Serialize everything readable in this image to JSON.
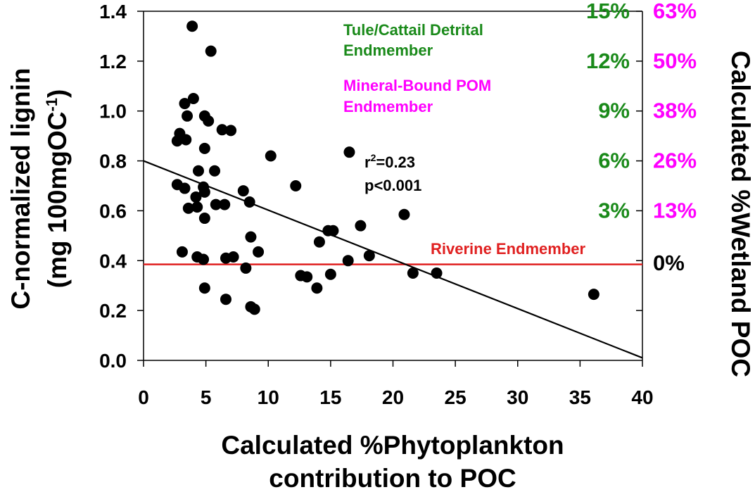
{
  "chart_data": {
    "type": "scatter",
    "xlabel_lines": [
      "Calculated %Phytoplankton",
      "contribution to POC"
    ],
    "ylabel_lines": [
      "C-normalized lignin",
      "(mg 100mgOC",
      "-1",
      ")"
    ],
    "y2label": "Calculated %Wetland POC",
    "xlim": [
      0,
      40
    ],
    "ylim": [
      0,
      1.4
    ],
    "xticks": [
      "0",
      "5",
      "10",
      "15",
      "20",
      "25",
      "30",
      "35",
      "40"
    ],
    "xtick_values": [
      0,
      5,
      10,
      15,
      20,
      25,
      30,
      35,
      40
    ],
    "yticks": [
      "0.0",
      "0.2",
      "0.4",
      "0.6",
      "0.8",
      "1.0",
      "1.2",
      "1.4"
    ],
    "ytick_values": [
      0,
      0.2,
      0.4,
      0.6,
      0.8,
      1.0,
      1.2,
      1.4
    ],
    "right_axis_green": [
      {
        "y": 1.4,
        "label": "15%"
      },
      {
        "y": 1.2,
        "label": "12%"
      },
      {
        "y": 1.0,
        "label": "9%"
      },
      {
        "y": 0.8,
        "label": "6%"
      },
      {
        "y": 0.6,
        "label": "3%"
      }
    ],
    "right_axis_magenta": [
      {
        "y": 1.4,
        "label": "63%"
      },
      {
        "y": 1.2,
        "label": "50%"
      },
      {
        "y": 1.0,
        "label": "38%"
      },
      {
        "y": 0.8,
        "label": "26%"
      },
      {
        "y": 0.6,
        "label": "13%"
      },
      {
        "y": 0.39,
        "label": "0%"
      }
    ],
    "right_axis_ticks": [
      0.2,
      0.4,
      0.6,
      0.8,
      1.0,
      1.2,
      1.4
    ],
    "points": [
      {
        "x": 3.9,
        "y": 1.34
      },
      {
        "x": 5.4,
        "y": 1.24
      },
      {
        "x": 4.0,
        "y": 1.05
      },
      {
        "x": 3.3,
        "y": 1.03
      },
      {
        "x": 3.5,
        "y": 0.98
      },
      {
        "x": 4.9,
        "y": 0.98
      },
      {
        "x": 5.2,
        "y": 0.96
      },
      {
        "x": 6.3,
        "y": 0.925
      },
      {
        "x": 7.0,
        "y": 0.922
      },
      {
        "x": 2.9,
        "y": 0.91
      },
      {
        "x": 2.7,
        "y": 0.88
      },
      {
        "x": 3.4,
        "y": 0.885
      },
      {
        "x": 4.9,
        "y": 0.85
      },
      {
        "x": 10.2,
        "y": 0.82
      },
      {
        "x": 16.5,
        "y": 0.835
      },
      {
        "x": 4.4,
        "y": 0.76
      },
      {
        "x": 5.7,
        "y": 0.76
      },
      {
        "x": 2.7,
        "y": 0.705
      },
      {
        "x": 3.3,
        "y": 0.69
      },
      {
        "x": 4.8,
        "y": 0.695
      },
      {
        "x": 12.2,
        "y": 0.7
      },
      {
        "x": 4.9,
        "y": 0.675
      },
      {
        "x": 8.0,
        "y": 0.68
      },
      {
        "x": 4.2,
        "y": 0.655
      },
      {
        "x": 8.5,
        "y": 0.635
      },
      {
        "x": 5.8,
        "y": 0.625
      },
      {
        "x": 6.5,
        "y": 0.625
      },
      {
        "x": 3.6,
        "y": 0.61
      },
      {
        "x": 4.3,
        "y": 0.615
      },
      {
        "x": 20.9,
        "y": 0.585
      },
      {
        "x": 4.9,
        "y": 0.57
      },
      {
        "x": 17.4,
        "y": 0.54
      },
      {
        "x": 14.8,
        "y": 0.52
      },
      {
        "x": 15.2,
        "y": 0.52
      },
      {
        "x": 8.6,
        "y": 0.495
      },
      {
        "x": 14.1,
        "y": 0.475
      },
      {
        "x": 3.1,
        "y": 0.435
      },
      {
        "x": 9.2,
        "y": 0.435
      },
      {
        "x": 4.3,
        "y": 0.415
      },
      {
        "x": 4.8,
        "y": 0.405
      },
      {
        "x": 6.6,
        "y": 0.41
      },
      {
        "x": 7.2,
        "y": 0.415
      },
      {
        "x": 16.4,
        "y": 0.4
      },
      {
        "x": 18.1,
        "y": 0.42
      },
      {
        "x": 8.2,
        "y": 0.37
      },
      {
        "x": 12.6,
        "y": 0.34
      },
      {
        "x": 13.1,
        "y": 0.335
      },
      {
        "x": 15.0,
        "y": 0.345
      },
      {
        "x": 21.6,
        "y": 0.35
      },
      {
        "x": 23.5,
        "y": 0.35
      },
      {
        "x": 36.1,
        "y": 0.265
      },
      {
        "x": 4.9,
        "y": 0.29
      },
      {
        "x": 13.9,
        "y": 0.29
      },
      {
        "x": 6.6,
        "y": 0.245
      },
      {
        "x": 8.6,
        "y": 0.215
      },
      {
        "x": 8.9,
        "y": 0.205
      }
    ],
    "regression": {
      "x1": 0,
      "y1": 0.8,
      "x2": 40,
      "y2": 0.01
    },
    "riverine_line_y": 0.385,
    "annotations": {
      "tule": [
        "Tule/Cattail Detrital",
        "Endmember"
      ],
      "mineral": [
        "Mineral-Bound POM",
        "Endmember"
      ],
      "riverine": "Riverine Endmember",
      "r2_prefix": "r",
      "r2_sup": "2",
      "r2_value": "=0.23",
      "p": "p<0.001"
    },
    "colors": {
      "green": "#1a8a1a",
      "magenta": "#ff00ff",
      "red": "#e02020",
      "black": "#000000"
    }
  }
}
